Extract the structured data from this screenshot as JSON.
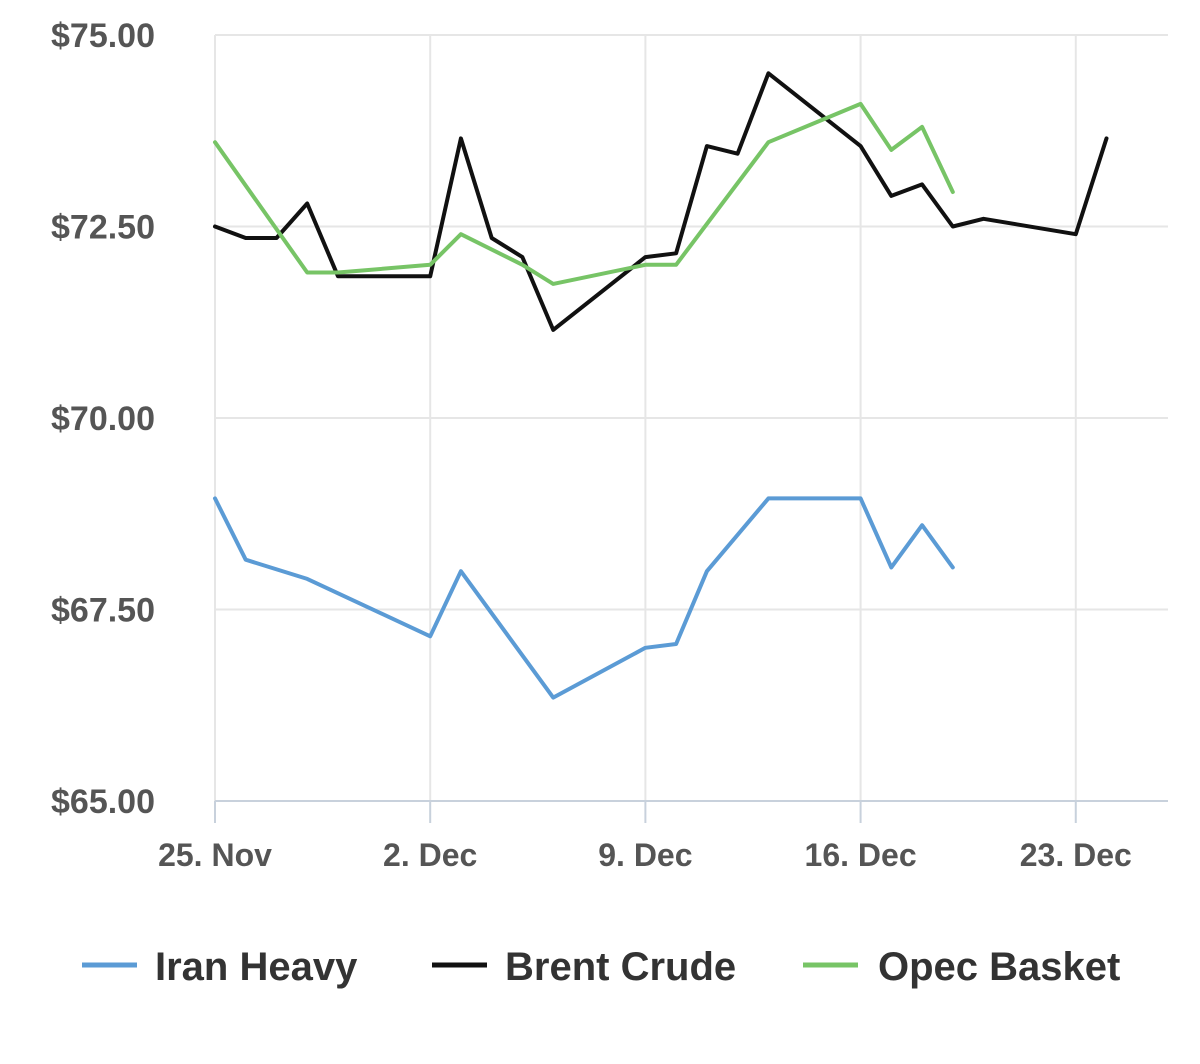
{
  "chart_data": {
    "type": "line",
    "title": "",
    "xlabel": "",
    "ylabel": "",
    "ylim": [
      65,
      75
    ],
    "xlim": [
      "2019-11-25",
      "2019-12-26"
    ],
    "y_ticks": [
      75,
      72.5,
      70,
      67.5,
      65
    ],
    "y_tick_labels": [
      "$75.00",
      "$72.50",
      "$70.00",
      "$67.50",
      "$65.00"
    ],
    "x_ticks": [
      "2019-11-25",
      "2019-12-02",
      "2019-12-09",
      "2019-12-16",
      "2019-12-23"
    ],
    "x_tick_labels": [
      "25. Nov",
      "2. Dec",
      "9. Dec",
      "16. Dec",
      "23. Dec"
    ],
    "grid": true,
    "legend_position": "bottom",
    "series": [
      {
        "name": "Iran Heavy",
        "color": "#5b9bd5",
        "points": [
          [
            "2019-11-25",
            68.95
          ],
          [
            "2019-11-26",
            68.15
          ],
          [
            "2019-11-28",
            67.9
          ],
          [
            "2019-12-02",
            67.15
          ],
          [
            "2019-12-03",
            68.0
          ],
          [
            "2019-12-06",
            66.35
          ],
          [
            "2019-12-09",
            67.0
          ],
          [
            "2019-12-10",
            67.05
          ],
          [
            "2019-12-11",
            68.0
          ],
          [
            "2019-12-13",
            68.95
          ],
          [
            "2019-12-16",
            68.95
          ],
          [
            "2019-12-17",
            68.05
          ],
          [
            "2019-12-18",
            68.6
          ],
          [
            "2019-12-19",
            68.05
          ]
        ]
      },
      {
        "name": "Brent Crude",
        "color": "#111111",
        "points": [
          [
            "2019-11-25",
            72.5
          ],
          [
            "2019-11-26",
            72.35
          ],
          [
            "2019-11-27",
            72.35
          ],
          [
            "2019-11-28",
            72.8
          ],
          [
            "2019-11-29",
            71.85
          ],
          [
            "2019-12-02",
            71.85
          ],
          [
            "2019-12-03",
            73.65
          ],
          [
            "2019-12-04",
            72.35
          ],
          [
            "2019-12-05",
            72.1
          ],
          [
            "2019-12-06",
            71.15
          ],
          [
            "2019-12-09",
            72.1
          ],
          [
            "2019-12-10",
            72.15
          ],
          [
            "2019-12-11",
            73.55
          ],
          [
            "2019-12-12",
            73.45
          ],
          [
            "2019-12-13",
            74.5
          ],
          [
            "2019-12-16",
            73.55
          ],
          [
            "2019-12-17",
            72.9
          ],
          [
            "2019-12-18",
            73.05
          ],
          [
            "2019-12-19",
            72.5
          ],
          [
            "2019-12-20",
            72.6
          ],
          [
            "2019-12-23",
            72.4
          ],
          [
            "2019-12-24",
            73.65
          ]
        ]
      },
      {
        "name": "Opec Basket",
        "color": "#77c466",
        "points": [
          [
            "2019-11-25",
            73.6
          ],
          [
            "2019-11-28",
            71.9
          ],
          [
            "2019-11-29",
            71.9
          ],
          [
            "2019-12-02",
            72.0
          ],
          [
            "2019-12-03",
            72.4
          ],
          [
            "2019-12-05",
            72.0
          ],
          [
            "2019-12-06",
            71.75
          ],
          [
            "2019-12-09",
            72.0
          ],
          [
            "2019-12-10",
            72.0
          ],
          [
            "2019-12-13",
            73.6
          ],
          [
            "2019-12-16",
            74.1
          ],
          [
            "2019-12-17",
            73.5
          ],
          [
            "2019-12-18",
            73.8
          ],
          [
            "2019-12-19",
            72.95
          ]
        ]
      }
    ]
  }
}
